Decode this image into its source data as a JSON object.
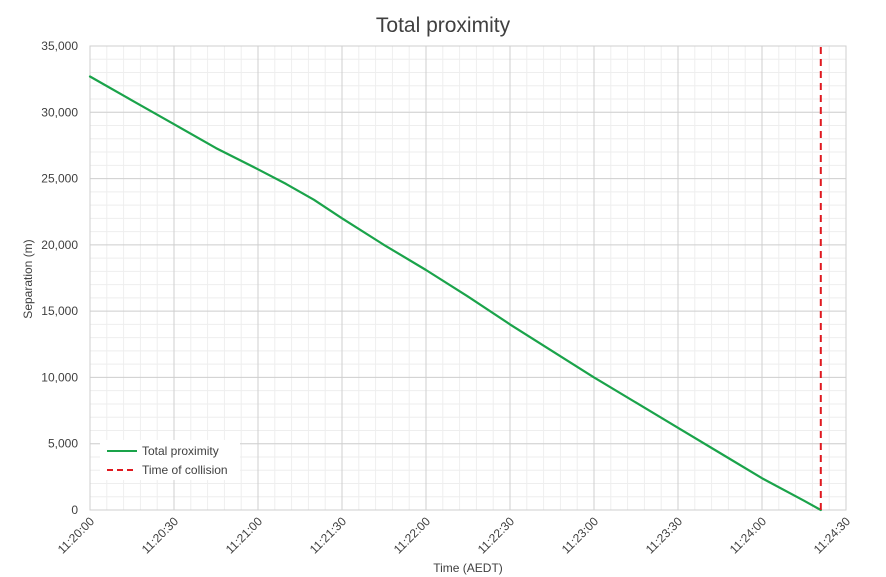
{
  "chart_data": {
    "type": "line",
    "title": "Total proximity",
    "xlabel": "Time (AEDT)",
    "ylabel": "Separation (m)",
    "xlim": [
      "11:20:00",
      "11:24:30"
    ],
    "ylim": [
      0,
      35000
    ],
    "x_ticks": [
      "11:20:00",
      "11:20:30",
      "11:21:00",
      "11:21:30",
      "11:22:00",
      "11:22:30",
      "11:23:00",
      "11:23:30",
      "11:24:00",
      "11:24:30"
    ],
    "y_ticks": [
      "0",
      "5,000",
      "10,000",
      "15,000",
      "20,000",
      "25,000",
      "30,000",
      "35,000"
    ],
    "grid": true,
    "legend_position": "bottom-left",
    "series": [
      {
        "name": "Total proximity",
        "color": "#1aa34a",
        "line_style": "solid",
        "x": [
          "11:20:00",
          "11:20:15",
          "11:20:30",
          "11:20:45",
          "11:21:00",
          "11:21:10",
          "11:21:20",
          "11:21:30",
          "11:21:45",
          "11:22:00",
          "11:22:15",
          "11:22:30",
          "11:22:45",
          "11:23:00",
          "11:23:15",
          "11:23:30",
          "11:23:45",
          "11:24:00",
          "11:24:15",
          "11:24:21"
        ],
        "values": [
          32700,
          30900,
          29100,
          27300,
          25700,
          24600,
          23400,
          22000,
          20000,
          18100,
          16100,
          14000,
          12000,
          10000,
          8100,
          6200,
          4300,
          2400,
          700,
          0
        ]
      },
      {
        "name": "Time of collision",
        "color": "#e0191f",
        "line_style": "dashed",
        "x": [
          "11:24:21",
          "11:24:21"
        ],
        "values": [
          0,
          35000
        ]
      }
    ]
  }
}
